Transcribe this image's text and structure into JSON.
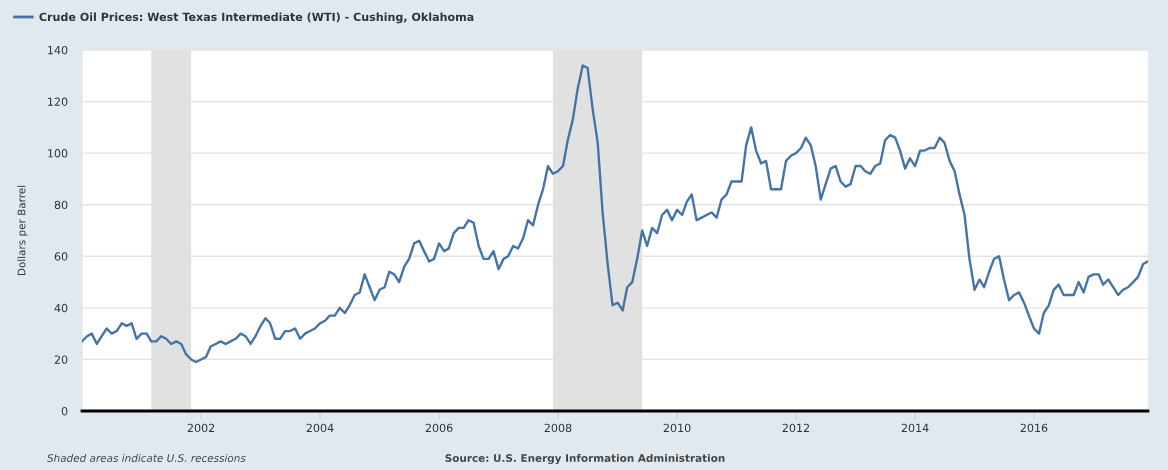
{
  "chart_data": {
    "type": "line",
    "ylabel": "Dollars per Barrel",
    "annotations": [
      "Shaded areas indicate U.S. recessions",
      "Source: U.S. Energy Information Administration"
    ],
    "x": [
      "2000-01",
      "2000-02",
      "2000-03",
      "2000-04",
      "2000-05",
      "2000-06",
      "2000-07",
      "2000-08",
      "2000-09",
      "2000-10",
      "2000-11",
      "2000-12",
      "2001-01",
      "2001-02",
      "2001-03",
      "2001-04",
      "2001-05",
      "2001-06",
      "2001-07",
      "2001-08",
      "2001-09",
      "2001-10",
      "2001-11",
      "2001-12",
      "2002-01",
      "2002-02",
      "2002-03",
      "2002-04",
      "2002-05",
      "2002-06",
      "2002-07",
      "2002-08",
      "2002-09",
      "2002-10",
      "2002-11",
      "2002-12",
      "2003-01",
      "2003-02",
      "2003-03",
      "2003-04",
      "2003-05",
      "2003-06",
      "2003-07",
      "2003-08",
      "2003-09",
      "2003-10",
      "2003-11",
      "2003-12",
      "2004-01",
      "2004-02",
      "2004-03",
      "2004-04",
      "2004-05",
      "2004-06",
      "2004-07",
      "2004-08",
      "2004-09",
      "2004-10",
      "2004-11",
      "2004-12",
      "2005-01",
      "2005-02",
      "2005-03",
      "2005-04",
      "2005-05",
      "2005-06",
      "2005-07",
      "2005-08",
      "2005-09",
      "2005-10",
      "2005-11",
      "2005-12",
      "2006-01",
      "2006-02",
      "2006-03",
      "2006-04",
      "2006-05",
      "2006-06",
      "2006-07",
      "2006-08",
      "2006-09",
      "2006-10",
      "2006-11",
      "2006-12",
      "2007-01",
      "2007-02",
      "2007-03",
      "2007-04",
      "2007-05",
      "2007-06",
      "2007-07",
      "2007-08",
      "2007-09",
      "2007-10",
      "2007-11",
      "2007-12",
      "2008-01",
      "2008-02",
      "2008-03",
      "2008-04",
      "2008-05",
      "2008-06",
      "2008-07",
      "2008-08",
      "2008-09",
      "2008-10",
      "2008-11",
      "2008-12",
      "2009-01",
      "2009-02",
      "2009-03",
      "2009-04",
      "2009-05",
      "2009-06",
      "2009-07",
      "2009-08",
      "2009-09",
      "2009-10",
      "2009-11",
      "2009-12",
      "2010-01",
      "2010-02",
      "2010-03",
      "2010-04",
      "2010-05",
      "2010-06",
      "2010-07",
      "2010-08",
      "2010-09",
      "2010-10",
      "2010-11",
      "2010-12",
      "2011-01",
      "2011-02",
      "2011-03",
      "2011-04",
      "2011-05",
      "2011-06",
      "2011-07",
      "2011-08",
      "2011-09",
      "2011-10",
      "2011-11",
      "2011-12",
      "2012-01",
      "2012-02",
      "2012-03",
      "2012-04",
      "2012-05",
      "2012-06",
      "2012-07",
      "2012-08",
      "2012-09",
      "2012-10",
      "2012-11",
      "2012-12",
      "2013-01",
      "2013-02",
      "2013-03",
      "2013-04",
      "2013-05",
      "2013-06",
      "2013-07",
      "2013-08",
      "2013-09",
      "2013-10",
      "2013-11",
      "2013-12",
      "2014-01",
      "2014-02",
      "2014-03",
      "2014-04",
      "2014-05",
      "2014-06",
      "2014-07",
      "2014-08",
      "2014-09",
      "2014-10",
      "2014-11",
      "2014-12",
      "2015-01",
      "2015-02",
      "2015-03",
      "2015-04",
      "2015-05",
      "2015-06",
      "2015-07",
      "2015-08",
      "2015-09",
      "2015-10",
      "2015-11",
      "2015-12",
      "2016-01",
      "2016-02",
      "2016-03",
      "2016-04",
      "2016-05",
      "2016-06",
      "2016-07",
      "2016-08",
      "2016-09",
      "2016-10",
      "2016-11",
      "2016-12",
      "2017-01",
      "2017-02",
      "2017-03",
      "2017-04",
      "2017-05",
      "2017-06",
      "2017-07",
      "2017-08",
      "2017-09",
      "2017-10",
      "2017-11",
      "2017-12"
    ],
    "series": [
      {
        "name": "Crude Oil Prices: West Texas Intermediate (WTI) - Cushing, Oklahoma",
        "color": "#4572a7",
        "values": [
          27,
          29,
          30,
          26,
          29,
          32,
          30,
          31,
          34,
          33,
          34,
          28,
          30,
          30,
          27,
          27,
          29,
          28,
          26,
          27,
          26,
          22,
          20,
          19,
          20,
          21,
          25,
          26,
          27,
          26,
          27,
          28,
          30,
          29,
          26,
          29,
          33,
          36,
          34,
          28,
          28,
          31,
          31,
          32,
          28,
          30,
          31,
          32,
          34,
          35,
          37,
          37,
          40,
          38,
          41,
          45,
          46,
          53,
          48,
          43,
          47,
          48,
          54,
          53,
          50,
          56,
          59,
          65,
          66,
          62,
          58,
          59,
          65,
          62,
          63,
          69,
          71,
          71,
          74,
          73,
          64,
          59,
          59,
          62,
          55,
          59,
          60,
          64,
          63,
          67,
          74,
          72,
          80,
          86,
          95,
          92,
          93,
          95,
          105,
          113,
          125,
          134,
          133,
          117,
          104,
          77,
          57,
          41,
          42,
          39,
          48,
          50,
          59,
          70,
          64,
          71,
          69,
          76,
          78,
          74,
          78,
          76,
          81,
          84,
          74,
          75,
          76,
          77,
          75,
          82,
          84,
          89,
          89,
          89,
          103,
          110,
          101,
          96,
          97,
          86,
          86,
          86,
          97,
          99,
          100,
          102,
          106,
          103,
          95,
          82,
          88,
          94,
          95,
          89,
          87,
          88,
          95,
          95,
          93,
          92,
          95,
          96,
          105,
          107,
          106,
          101,
          94,
          98,
          95,
          101,
          101,
          102,
          102,
          106,
          104,
          97,
          93,
          84,
          76,
          59,
          47,
          51,
          48,
          54,
          59,
          60,
          51,
          43,
          45,
          46,
          42,
          37,
          32,
          30,
          38,
          41,
          47,
          49,
          45,
          45,
          45,
          50,
          46,
          52,
          53,
          53,
          49,
          51,
          48,
          45,
          47,
          48,
          50,
          52,
          57,
          58
        ]
      }
    ],
    "xlim": [
      "2000-01",
      "2017-12"
    ],
    "xticks": [
      "2002",
      "2004",
      "2006",
      "2008",
      "2010",
      "2012",
      "2014",
      "2016"
    ],
    "ylim": [
      0,
      140
    ],
    "yticks": [
      0,
      20,
      40,
      60,
      80,
      100,
      120,
      140
    ],
    "bands": [
      {
        "axis": "x",
        "from": "2001-03",
        "to": "2001-11",
        "color": "#e1e1e1"
      },
      {
        "axis": "x",
        "from": "2007-12",
        "to": "2009-06",
        "color": "#e1e1e1"
      }
    ],
    "grid": "y",
    "legend": "top left",
    "line_style": "solid"
  }
}
